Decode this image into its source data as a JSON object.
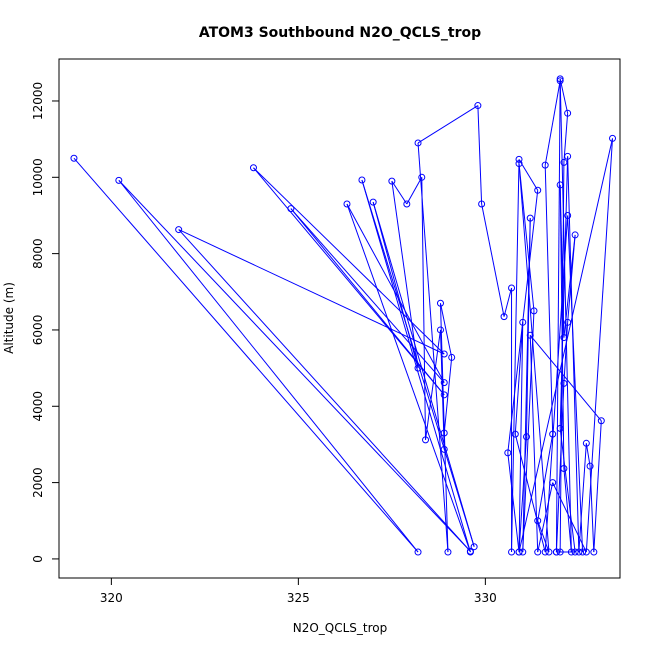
{
  "chart_data": {
    "type": "line",
    "title": "ATOM3 Southbound N2O_QCLS_trop",
    "xlabel": "N2O_QCLS_trop",
    "ylabel": "Altitude (m)",
    "xlim": [
      318.6,
      333.6
    ],
    "ylim": [
      -500,
      13100
    ],
    "x_ticks": [
      320,
      325,
      330
    ],
    "y_ticks": [
      0,
      2000,
      4000,
      6000,
      8000,
      10000,
      12000
    ],
    "x_tick_labels": [
      "320",
      "325",
      "330"
    ],
    "y_tick_labels": [
      "0",
      "2000",
      "4000",
      "6000",
      "8000",
      "10000",
      "12000"
    ],
    "grid": false,
    "legend": "none",
    "series": [
      {
        "color": "#0000ff",
        "marker": "open-circle",
        "x": [
          319.0,
          328.2,
          320.2,
          329.6,
          321.8,
          328.9,
          323.8,
          328.9,
          324.8,
          328.9,
          326.3,
          329.6,
          326.7,
          329.7,
          327.0,
          328.2,
          327.5,
          327.9,
          328.3,
          328.4,
          328.8,
          328.9,
          328.9,
          329.1,
          328.8,
          329.0,
          328.2,
          329.8,
          329.9,
          330.5,
          330.7,
          330.7,
          330.9,
          331.4,
          330.6,
          330.9,
          331.1,
          331.2,
          331.0,
          331.3,
          330.9,
          331.7,
          331.4,
          331.8,
          331.6,
          332.0,
          331.9,
          332.0,
          332.1,
          332.2,
          332.0,
          332.3,
          332.1,
          332.0,
          332.1,
          332.4,
          332.2,
          332.1,
          331.9,
          332.4,
          332.0,
          332.2,
          332.5,
          332.7,
          332.8,
          332.9,
          333.1,
          331.2,
          331.4,
          331.8,
          332.7,
          333.4,
          330.9,
          331.0,
          330.8,
          331.6,
          332.2,
          332.6
        ],
        "y": [
          10500,
          180,
          9920,
          200,
          8630,
          5370,
          10250,
          4300,
          9180,
          4620,
          9300,
          180,
          9930,
          320,
          9350,
          5000,
          9900,
          9300,
          10000,
          3120,
          6000,
          2870,
          3300,
          5280,
          6700,
          180,
          10900,
          11880,
          9300,
          6350,
          7100,
          180,
          10470,
          9660,
          2780,
          180,
          3200,
          8930,
          180,
          6500,
          10360,
          180,
          1000,
          3270,
          10320,
          12530,
          180,
          180,
          10390,
          11680,
          12580,
          180,
          2370,
          9800,
          5800,
          8490,
          6200,
          4600,
          180,
          180,
          3420,
          10550,
          180,
          3030,
          2430,
          180,
          3620,
          5860,
          180,
          2000,
          180,
          11020,
          180,
          6200,
          3270,
          180,
          9000,
          180
        ]
      }
    ]
  }
}
